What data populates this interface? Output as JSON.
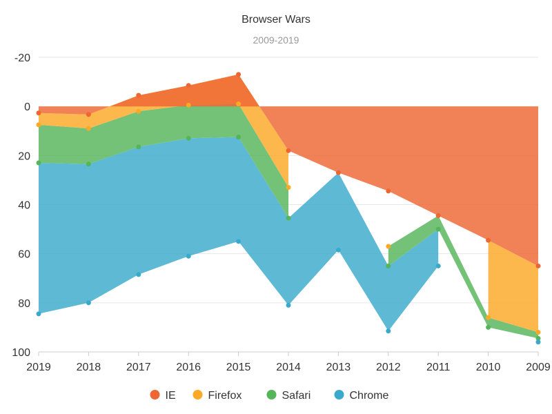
{
  "chart_data": {
    "type": "area",
    "title": "Browser Wars",
    "subtitle": "2009-2019",
    "categories": [
      "2019",
      "2018",
      "2017",
      "2016",
      "2015",
      "2014",
      "2013",
      "2012",
      "2011",
      "2010",
      "2009"
    ],
    "y_axis": {
      "ticks": [
        -20,
        0,
        20,
        40,
        60,
        80,
        100
      ],
      "inverted": true,
      "range": [
        -20,
        100
      ]
    },
    "grid": true,
    "legend_position": "bottom",
    "series": [
      {
        "name": "IE",
        "color": "#EE6633",
        "cumulative": [
          2.7,
          3.3,
          -4.5,
          -8.5,
          -13,
          18,
          27,
          34.5,
          44.5,
          54.5,
          65
        ]
      },
      {
        "name": "Firefox",
        "color": "#FDA826",
        "cumulative": [
          7.5,
          9,
          2,
          -0.5,
          -1,
          33,
          null,
          57,
          null,
          86,
          92
        ]
      },
      {
        "name": "Safari",
        "color": "#55B559",
        "cumulative": [
          23,
          23.5,
          16.5,
          13,
          12.5,
          45.5,
          null,
          65,
          50,
          90,
          94.5
        ]
      },
      {
        "name": "Chrome",
        "color": "#3AAACC",
        "cumulative": [
          84.5,
          80,
          68.5,
          61,
          55,
          81,
          58.5,
          91.5,
          65,
          null,
          96
        ]
      }
    ]
  }
}
